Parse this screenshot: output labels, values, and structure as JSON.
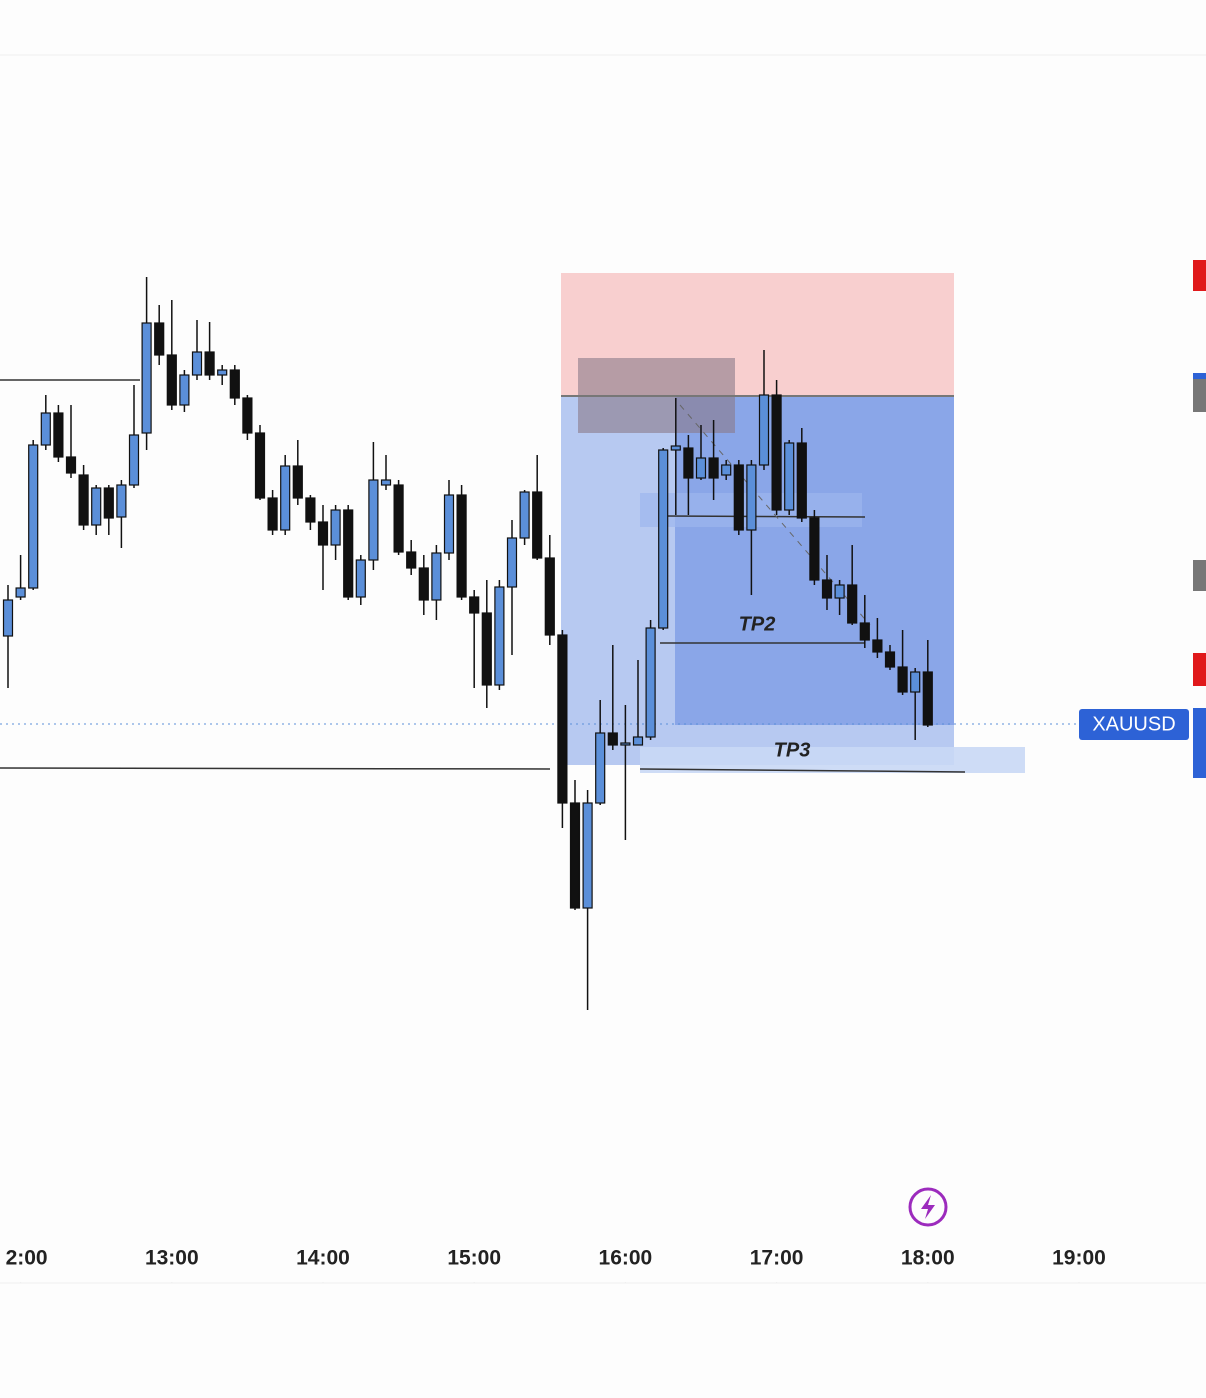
{
  "chart_data": {
    "type": "candlestick",
    "symbol": "XAUUSD",
    "annotations": [
      "TP2",
      "TP3"
    ],
    "up_color": "#5b8fd9",
    "down_color": "#111111",
    "open": [
      56.4,
      60.3,
      61.2,
      75.5,
      78.7,
      74.3,
      72.5,
      67.5,
      71.2,
      68.3,
      71.5,
      76.7,
      87.7,
      84.5,
      79.5,
      82.5,
      84.8,
      82.5,
      83,
      80.2,
      76.7,
      70.2,
      67,
      73.4,
      70.2,
      67.8,
      65.5,
      69,
      60.3,
      64,
      71.5,
      71.5,
      64.8,
      63.2,
      60,
      64.7,
      70.5,
      60.3,
      58.7,
      51.5,
      61.3,
      66.2,
      70.8,
      64.2,
      56.5,
      39.7,
      29.2,
      39.7,
      46.7,
      45.5,
      45.5,
      46.3,
      57.2,
      75,
      75.2,
      72.2,
      74.2,
      72.5,
      73.5,
      67,
      73.5,
      80.5,
      69,
      75.7,
      68.2,
      62,
      60.2,
      61.5,
      57.7,
      56,
      54.8,
      53.3,
      50.8,
      52.8
    ],
    "high": [
      61.5,
      64.5,
      76,
      80.5,
      79.5,
      79.5,
      73.5,
      71.5,
      71.5,
      72,
      81.5,
      92.3,
      89.5,
      90,
      83,
      88,
      87.8,
      83.5,
      83.5,
      80.5,
      77.5,
      71,
      74.5,
      76,
      70.5,
      69.5,
      69.5,
      69.5,
      64.5,
      75.8,
      74.5,
      72,
      66,
      64.5,
      65.5,
      72,
      71.5,
      61,
      62,
      62,
      68,
      71,
      74.5,
      66.5,
      57,
      42,
      41,
      50,
      55.5,
      49.5,
      54,
      58,
      75.2,
      80.2,
      76.5,
      77.5,
      78,
      74,
      74,
      74,
      85,
      82,
      76,
      77.2,
      69,
      64.5,
      62,
      65.5,
      60.5,
      58.2,
      55.5,
      57,
      53.2,
      56
    ],
    "low": [
      51.2,
      60,
      61,
      75,
      73.8,
      72.2,
      67,
      66.5,
      66.5,
      65.2,
      71.2,
      75,
      83.5,
      79,
      78.8,
      82,
      82,
      81.5,
      79.5,
      76,
      70,
      66.5,
      66.5,
      69.5,
      67,
      61,
      64,
      60,
      59.5,
      63,
      71,
      64.5,
      62.5,
      58.5,
      58,
      64,
      60,
      51.2,
      49.2,
      51,
      54.5,
      65.5,
      64,
      55.5,
      37.2,
      29,
      19,
      39.5,
      45,
      36,
      45.5,
      46,
      57,
      68.5,
      68.5,
      72,
      70,
      72,
      66.5,
      60.5,
      73,
      68.5,
      68.5,
      67.8,
      61.5,
      59,
      58.5,
      57.5,
      55.2,
      54.2,
      53,
      50.5,
      46,
      47.3
    ],
    "close": [
      60,
      61.2,
      75.5,
      78.7,
      74.3,
      72.7,
      67.5,
      71.2,
      68.2,
      71.5,
      76.5,
      87.7,
      84.5,
      79.5,
      82.5,
      84.8,
      82.5,
      83,
      80.2,
      76.7,
      70.2,
      67,
      73.4,
      70.2,
      67.8,
      65.5,
      69,
      60.3,
      64,
      72,
      72,
      64.8,
      63.2,
      60,
      64.7,
      70.5,
      60.3,
      58.7,
      51.5,
      61.3,
      66.2,
      70.8,
      64.2,
      56.5,
      39.7,
      29.2,
      39.7,
      46.7,
      45.5,
      45.7,
      46.3,
      57.2,
      75,
      75.4,
      72.2,
      74.2,
      72.2,
      73.5,
      67,
      73.5,
      80.5,
      69,
      75.7,
      68.2,
      62,
      60.2,
      61.5,
      57.7,
      56,
      54.8,
      53.3,
      50.8,
      52.8,
      47.5
    ],
    "ylim": [
      0,
      110
    ],
    "xlim": [
      -0.635,
      95.08
    ],
    "xticks": [
      {
        "value": 1,
        "label": "2:00"
      },
      {
        "value": 13,
        "label": "13:00"
      },
      {
        "value": 25,
        "label": "14:00"
      },
      {
        "value": 37,
        "label": "15:00"
      },
      {
        "value": 49,
        "label": "16:00"
      },
      {
        "value": 61,
        "label": "17:00"
      },
      {
        "value": 73,
        "label": "18:00"
      },
      {
        "value": 85,
        "label": "19:00"
      }
    ]
  }
}
